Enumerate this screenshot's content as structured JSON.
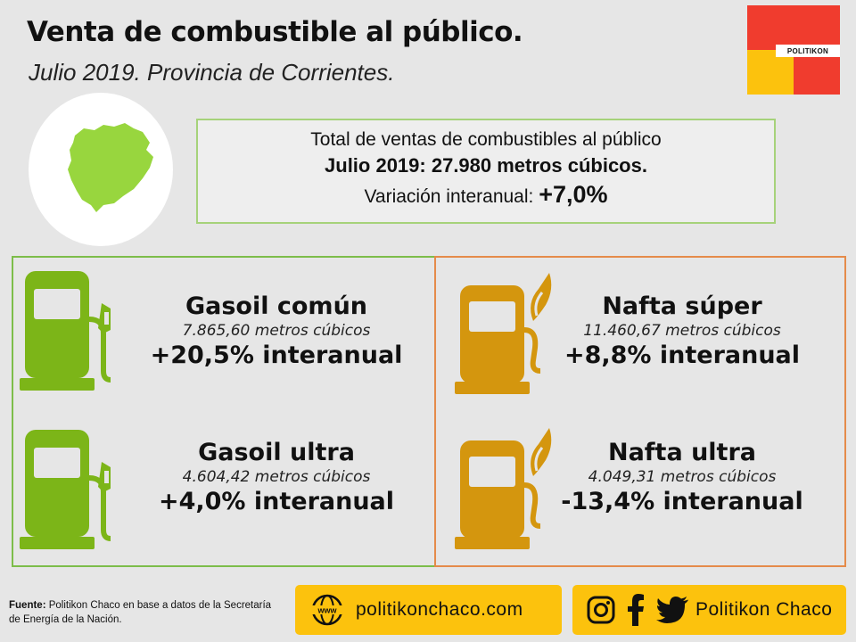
{
  "header": {
    "title": "Venta de combustible al público.",
    "subtitle": "Julio 2019. Provincia de Corrientes."
  },
  "logo": {
    "label": "POLITIKON"
  },
  "summary": {
    "line1": "Total de ventas de combustibles al público",
    "line2": "Julio 2019: 27.980 metros cúbicos.",
    "line3_label": "Variación interanual:",
    "line3_value": "+7,0%"
  },
  "fuels": {
    "gasoil_comun": {
      "name": "Gasoil común",
      "volume": "7.865,60 metros cúbicos",
      "variation": "+20,5% interanual"
    },
    "gasoil_ultra": {
      "name": "Gasoil ultra",
      "volume": "4.604,42 metros cúbicos",
      "variation": "+4,0% interanual"
    },
    "nafta_super": {
      "name": "Nafta súper",
      "volume": "11.460,67 metros cúbicos",
      "variation": "+8,8% interanual"
    },
    "nafta_ultra": {
      "name": "Nafta ultra",
      "volume": "4.049,31 metros cúbicos",
      "variation": "-13,4% interanual"
    }
  },
  "colors": {
    "gasoil": "#7cb518",
    "nafta": "#d4960e",
    "green_border": "#7dbd4a",
    "orange_border": "#e58b4a",
    "accent_yellow": "#fcc20d",
    "accent_red": "#f03c2e"
  },
  "footer": {
    "source_label": "Fuente:",
    "source_text": "Politikon Chaco en base a datos de la Secretaría de Energía de la Nación.",
    "web_icon": "www-globe-icon",
    "web_url": "politikonchaco.com",
    "social_icons": [
      "instagram-icon",
      "facebook-icon",
      "twitter-icon"
    ],
    "social_name": "Politikon Chaco"
  }
}
